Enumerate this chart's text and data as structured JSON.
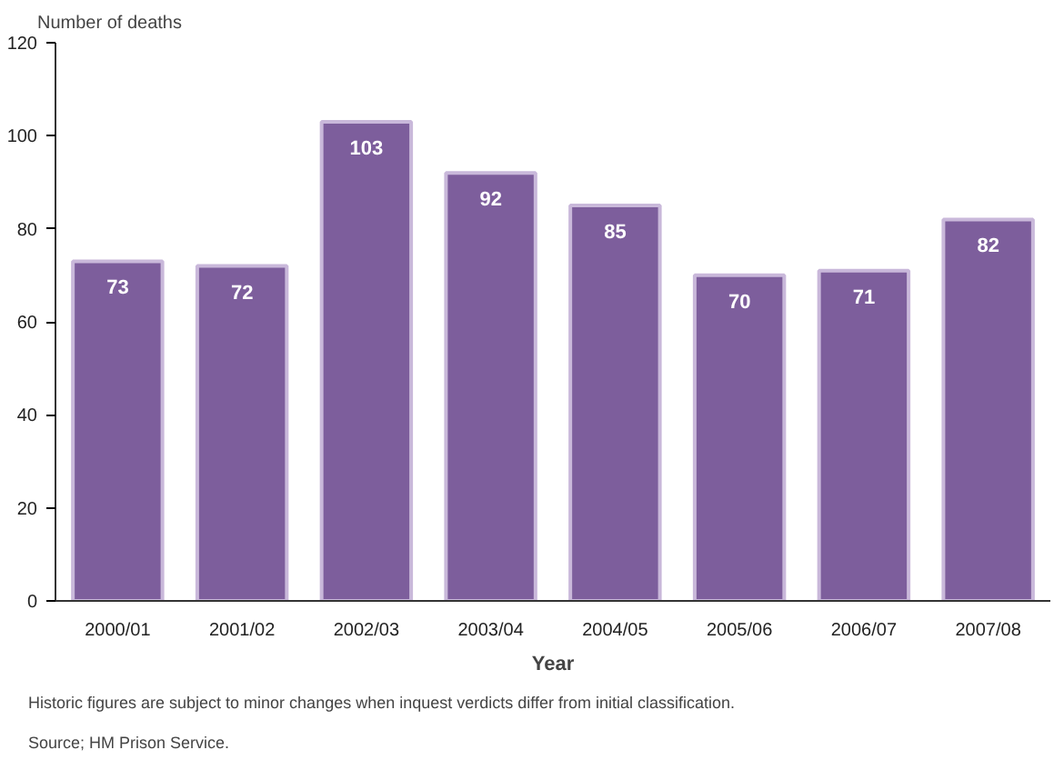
{
  "chart_data": {
    "type": "bar",
    "ylabel": "Number of deaths",
    "xlabel": "Year",
    "categories": [
      "2000/01",
      "2001/02",
      "2002/03",
      "2003/04",
      "2004/05",
      "2005/06",
      "2006/07",
      "2007/08"
    ],
    "values": [
      73,
      72,
      103,
      92,
      85,
      70,
      71,
      82
    ],
    "color": "#7d5e9c",
    "ylim": [
      0,
      120
    ],
    "yticks": [
      0,
      20,
      40,
      60,
      80,
      100,
      120
    ],
    "grid": false,
    "data_labels": true,
    "annotations": [
      "Historic figures are subject to minor changes when inquest verdicts differ from initial classification.",
      "Source; HM Prison Service."
    ]
  }
}
